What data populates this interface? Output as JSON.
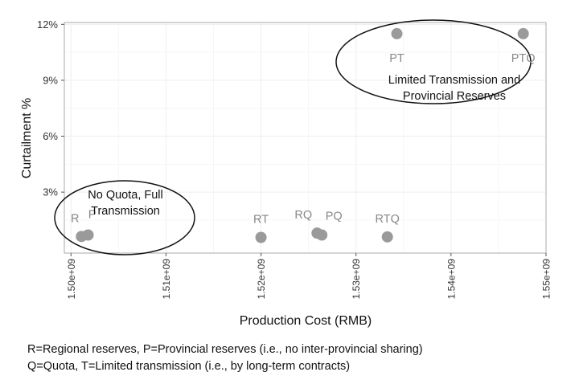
{
  "chart_data": {
    "type": "scatter",
    "xlabel": "Production Cost (RMB)",
    "ylabel": "Curtailment %",
    "xlim": [
      1499300000.0,
      1550000000.0
    ],
    "ylim": [
      -0.0027,
      0.121
    ],
    "x_ticks": [
      {
        "value": 1500000000.0,
        "label": "1.50e+09"
      },
      {
        "value": 1510000000.0,
        "label": "1.51e+09"
      },
      {
        "value": 1520000000.0,
        "label": "1.52e+09"
      },
      {
        "value": 1530000000.0,
        "label": "1.53e+09"
      },
      {
        "value": 1540000000.0,
        "label": "1.54e+09"
      },
      {
        "value": 1550000000.0,
        "label": "1.55e+09"
      }
    ],
    "y_ticks": [
      {
        "value": 0.03,
        "label": "3%"
      },
      {
        "value": 0.06,
        "label": "6%"
      },
      {
        "value": 0.09,
        "label": "9%"
      },
      {
        "value": 0.12,
        "label": "12%"
      }
    ],
    "grid": true,
    "points": [
      {
        "label": "R",
        "x": 1501100000.0,
        "y": 0.0062
      },
      {
        "label": "P",
        "x": 1501800000.0,
        "y": 0.007
      },
      {
        "label": "RT",
        "x": 1520000000.0,
        "y": 0.0057
      },
      {
        "label": "RQ",
        "x": 1525900000.0,
        "y": 0.008
      },
      {
        "label": "PQ",
        "x": 1526400000.0,
        "y": 0.007
      },
      {
        "label": "RTQ",
        "x": 1533300000.0,
        "y": 0.006
      },
      {
        "label": "PT",
        "x": 1534300000.0,
        "y": 0.115
      },
      {
        "label": "PTQ",
        "x": 1547600000.0,
        "y": 0.115
      }
    ],
    "annotations": [
      {
        "lines": [
          "Limited Transmission and",
          "Provincial Reserves"
        ]
      },
      {
        "lines": [
          "No Quota, Full",
          "Transmission"
        ]
      }
    ]
  },
  "captions": [
    "R=Regional reserves, P=Provincial reserves (i.e., no inter-provincial sharing)",
    "Q=Quota, T=Limited transmission (i.e., by long-term contracts)"
  ],
  "colors": {
    "point": "#9a9a9a",
    "point_label": "#888888",
    "grid": "#eeeeee",
    "panel_border": "#aaaaaa"
  }
}
